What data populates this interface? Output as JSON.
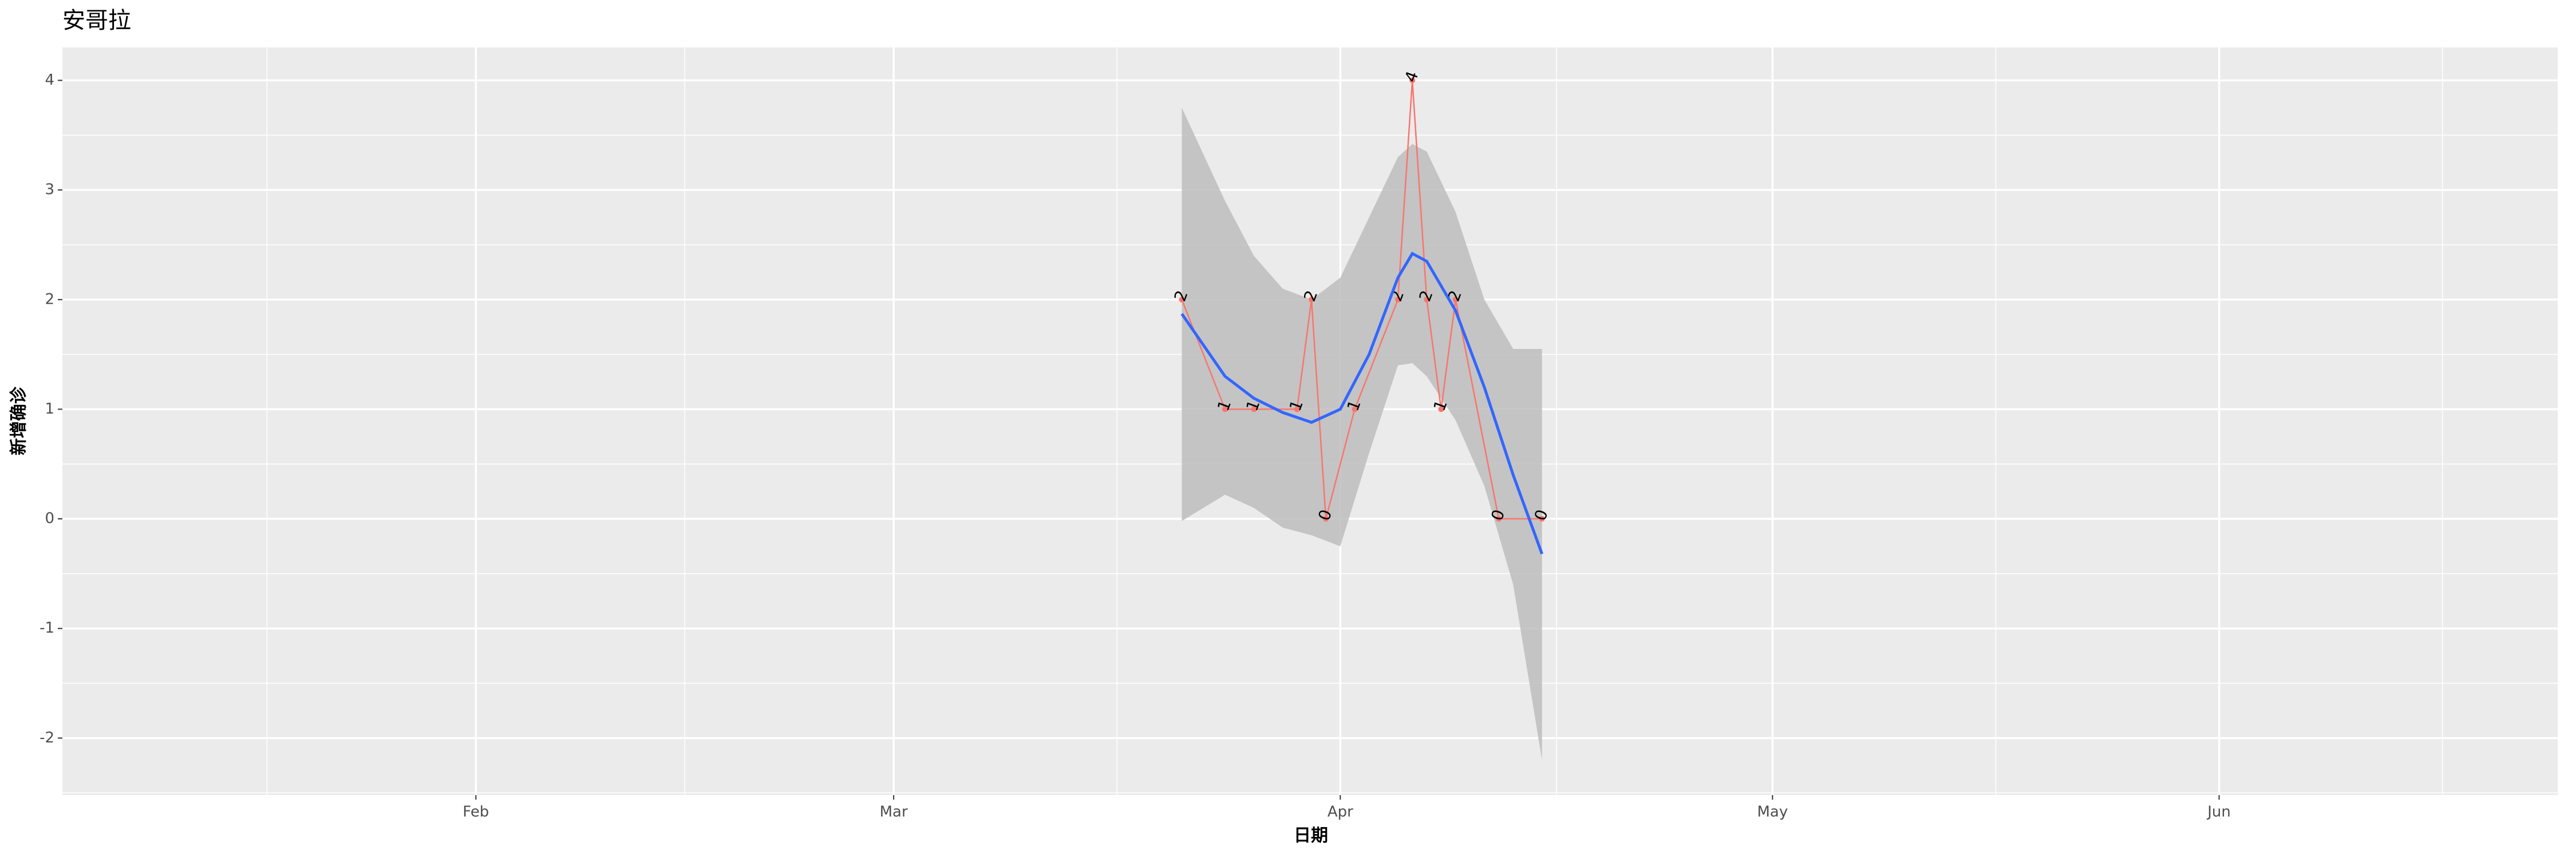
{
  "chart_data": {
    "type": "line",
    "title": "安哥拉",
    "x_label": "日期",
    "y_label": "新增确诊",
    "xlim": [
      3.3,
      176.5
    ],
    "xticks": [
      {
        "value": 32,
        "label": "Feb"
      },
      {
        "value": 61,
        "label": "Mar"
      },
      {
        "value": 92,
        "label": "Apr"
      },
      {
        "value": 122,
        "label": "May"
      },
      {
        "value": 153,
        "label": "Jun"
      }
    ],
    "ylim": [
      -2.52,
      4.3
    ],
    "yticks": [
      -2,
      -1,
      0,
      1,
      2,
      3,
      4
    ],
    "grid": true,
    "x": [
      81,
      84,
      86,
      89,
      90,
      91,
      93,
      96,
      97,
      98,
      99,
      100,
      103,
      106
    ],
    "series": [
      {
        "color": "#f8766d",
        "values": [
          2,
          1,
          1,
          1,
          2,
          0,
          1,
          2,
          4,
          2,
          1,
          2,
          0,
          0
        ]
      }
    ],
    "smooth": {
      "color": "#3366ff",
      "ribbon_color": "#bdbdbd",
      "x": [
        81,
        84,
        86,
        88,
        90,
        92,
        94,
        96,
        97,
        98,
        100,
        102,
        104,
        106
      ],
      "values": [
        1.87,
        1.3,
        1.1,
        0.97,
        0.88,
        1.0,
        1.5,
        2.2,
        2.42,
        2.35,
        1.9,
        1.2,
        0.4,
        -0.32
      ],
      "upper": [
        3.75,
        2.9,
        2.4,
        2.1,
        2.0,
        2.2,
        2.75,
        3.3,
        3.42,
        3.35,
        2.8,
        2.0,
        1.55,
        1.55
      ],
      "lower": [
        -0.02,
        0.22,
        0.1,
        -0.08,
        -0.15,
        -0.25,
        0.6,
        1.4,
        1.42,
        1.3,
        0.9,
        0.3,
        -0.6,
        -2.2
      ]
    }
  }
}
